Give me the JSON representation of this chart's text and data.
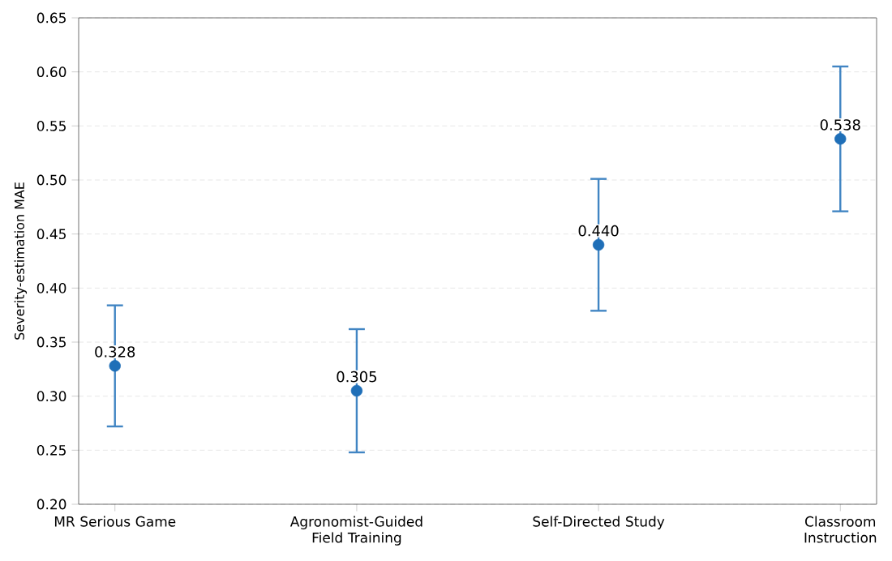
{
  "chart_data": {
    "type": "scatter",
    "ylabel": "Severity-estimation MAE",
    "categories": [
      "MR Serious Game",
      "Agronomist-Guided Field Training",
      "Self-Directed Study",
      "Classroom Instruction"
    ],
    "values": [
      0.328,
      0.305,
      0.44,
      0.538
    ],
    "errors": [
      0.056,
      0.057,
      0.061,
      0.067
    ],
    "value_labels": [
      "0.328",
      "0.305",
      "0.440",
      "0.538"
    ],
    "color": "#1f6fb8",
    "marker": "circle",
    "grid": "y",
    "ylim": [
      0.2,
      0.65
    ],
    "yticks": [
      {
        "value": 0.2,
        "label": "0.20"
      },
      {
        "value": 0.25,
        "label": "0.25"
      },
      {
        "value": 0.3,
        "label": "0.30"
      },
      {
        "value": 0.35,
        "label": "0.35"
      },
      {
        "value": 0.4,
        "label": "0.40"
      },
      {
        "value": 0.45,
        "label": "0.45"
      },
      {
        "value": 0.5,
        "label": "0.50"
      },
      {
        "value": 0.55,
        "label": "0.55"
      },
      {
        "value": 0.6,
        "label": "0.60"
      },
      {
        "value": 0.65,
        "label": "0.65"
      }
    ]
  }
}
